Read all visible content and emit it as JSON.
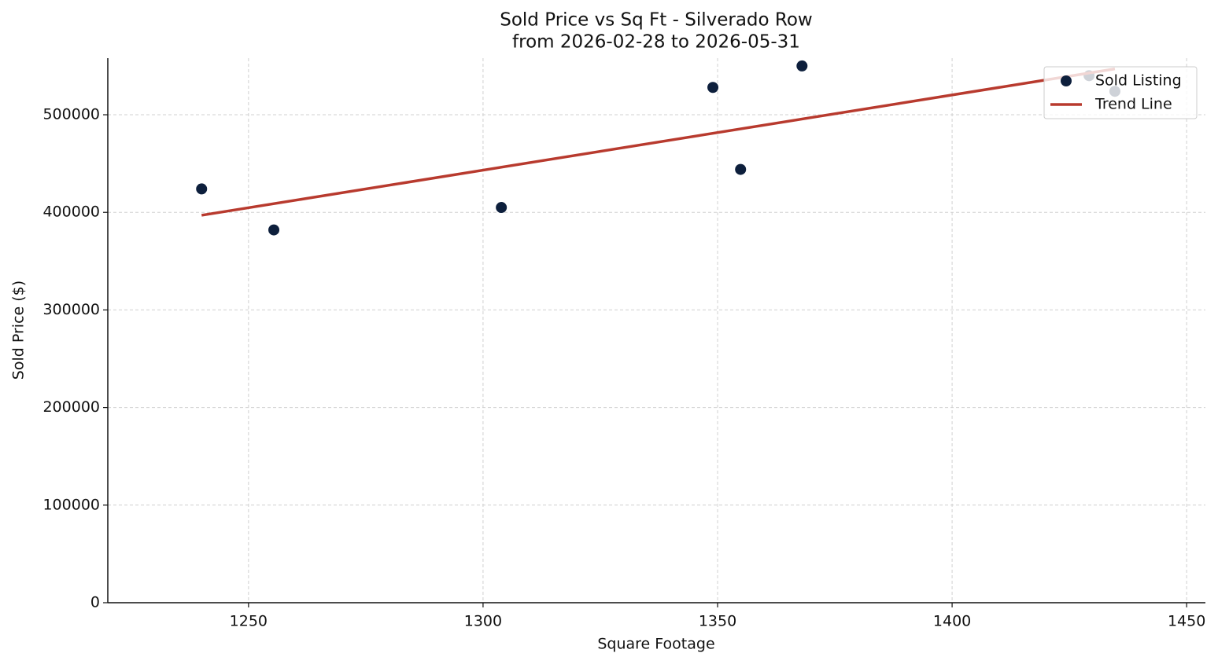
{
  "chart_data": {
    "type": "scatter",
    "title": "Sold Price vs Sq Ft - Silverado Row",
    "subtitle": "from 2026-02-28 to 2026-05-31",
    "x_label": "Square Footage",
    "y_label": "Sold Price ($)",
    "xlim": [
      1220,
      1454
    ],
    "ylim": [
      0,
      558000
    ],
    "xticks": [
      1250,
      1300,
      1350,
      1400,
      1450
    ],
    "yticks": [
      0,
      100000,
      200000,
      300000,
      400000,
      500000
    ],
    "grid": true,
    "legend": "upper right",
    "series": [
      {
        "name": "Sold Listing",
        "type": "scatter",
        "color": "#0d1f3c",
        "x": [
          1240,
          1255.4,
          1303.9,
          1349,
          1354.9,
          1368,
          1429.2,
          1434.7
        ],
        "values": [
          424000,
          382000,
          405000,
          528000,
          444000,
          550000,
          540000,
          524000
        ]
      },
      {
        "name": "Trend Line",
        "type": "line",
        "color": "#b83a2e",
        "x": [
          1240,
          1434.7
        ],
        "values": [
          397000,
          547000
        ]
      }
    ]
  }
}
